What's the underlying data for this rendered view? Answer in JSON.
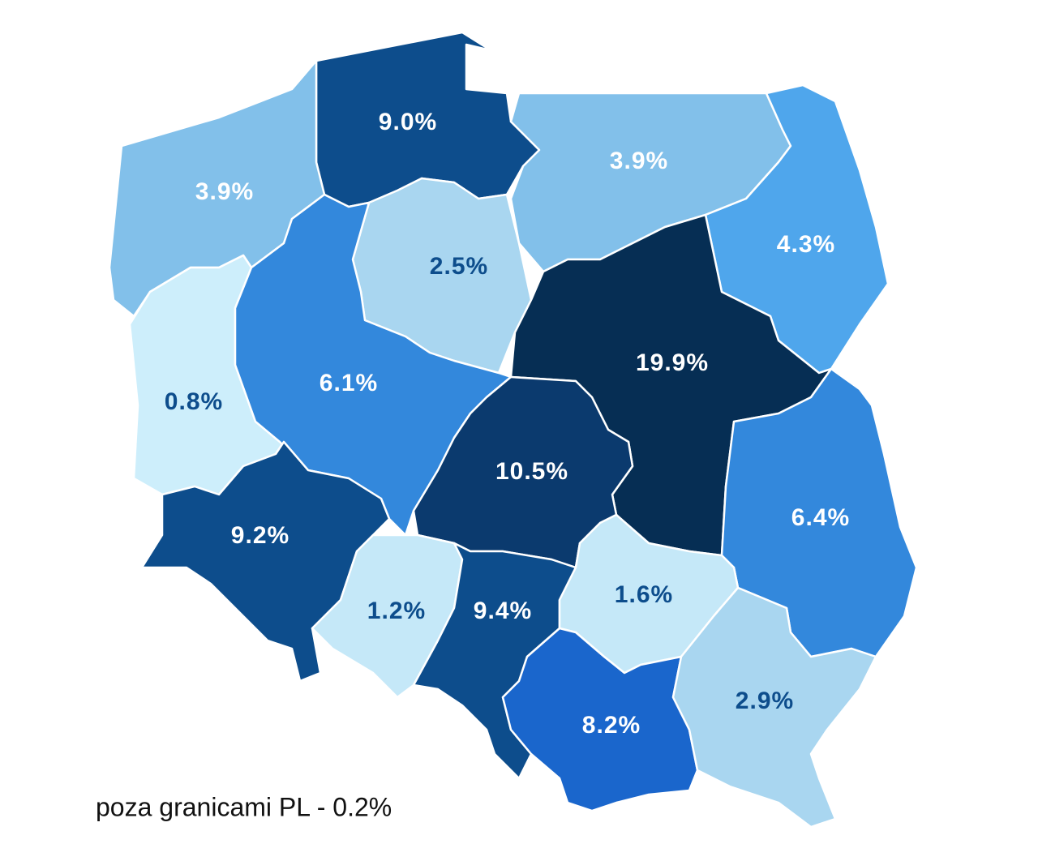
{
  "map": {
    "regions": [
      {
        "label": "9.0%",
        "color": "#0d4d8c",
        "label_color": "#ffffff"
      },
      {
        "label": "3.9%",
        "color": "#82c0ea",
        "label_color": "#ffffff"
      },
      {
        "label": "3.9%",
        "color": "#82c0ea",
        "label_color": "#ffffff"
      },
      {
        "label": "4.3%",
        "color": "#4fa6ec",
        "label_color": "#ffffff"
      },
      {
        "label": "2.5%",
        "color": "#a9d6f0",
        "label_color": "#0d4d8c"
      },
      {
        "label": "0.8%",
        "color": "#cdeefb",
        "label_color": "#0d4d8c"
      },
      {
        "label": "6.1%",
        "color": "#3388dc",
        "label_color": "#ffffff"
      },
      {
        "label": "19.9%",
        "color": "#062e54",
        "label_color": "#ffffff"
      },
      {
        "label": "10.5%",
        "color": "#0b3a6e",
        "label_color": "#ffffff"
      },
      {
        "label": "6.4%",
        "color": "#3388dc",
        "label_color": "#ffffff"
      },
      {
        "label": "9.2%",
        "color": "#0d4d8c",
        "label_color": "#ffffff"
      },
      {
        "label": "1.2%",
        "color": "#c5e8f8",
        "label_color": "#0d4d8c"
      },
      {
        "label": "9.4%",
        "color": "#0d4d8c",
        "label_color": "#ffffff"
      },
      {
        "label": "1.6%",
        "color": "#c5e8f8",
        "label_color": "#0d4d8c"
      },
      {
        "label": "8.2%",
        "color": "#1a66cc",
        "label_color": "#ffffff"
      },
      {
        "label": "2.9%",
        "color": "#a9d6f0",
        "label_color": "#0d4d8c"
      }
    ],
    "footnote": "poza granicami PL - 0.2%"
  }
}
